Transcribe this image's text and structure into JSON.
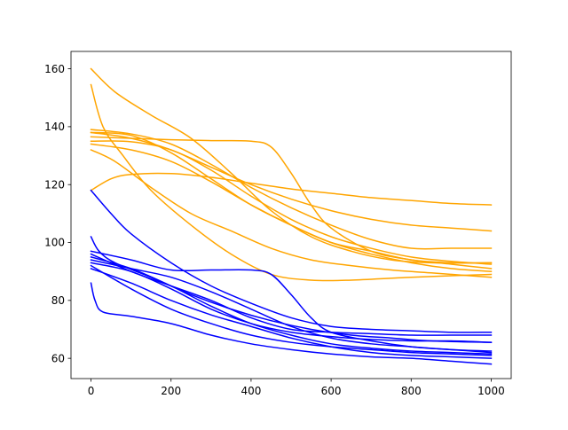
{
  "chart_data": {
    "type": "line",
    "title": "",
    "xlabel": "",
    "ylabel": "",
    "xlim": [
      -50,
      1050
    ],
    "ylim": [
      53,
      166
    ],
    "xticks": [
      0,
      200,
      400,
      600,
      800,
      1000
    ],
    "yticks": [
      60,
      80,
      100,
      120,
      140,
      160
    ],
    "xtick_labels": [
      "0",
      "200",
      "400",
      "600",
      "800",
      "1000"
    ],
    "ytick_labels": [
      "60",
      "80",
      "100",
      "120",
      "140",
      "160"
    ],
    "grid": false,
    "legend": false,
    "colors": {
      "group_orange": "#ffa500",
      "group_blue": "#0000ff"
    },
    "series": [
      {
        "color": "group_orange",
        "points": [
          [
            0,
            160
          ],
          [
            60,
            152
          ],
          [
            150,
            144
          ],
          [
            250,
            136
          ],
          [
            350,
            124
          ],
          [
            450,
            111
          ],
          [
            550,
            102
          ],
          [
            650,
            97
          ],
          [
            750,
            94
          ],
          [
            850,
            93
          ],
          [
            1000,
            93
          ]
        ]
      },
      {
        "color": "group_orange",
        "points": [
          [
            0,
            154.5
          ],
          [
            30,
            140
          ],
          [
            80,
            130
          ],
          [
            150,
            118
          ],
          [
            250,
            106
          ],
          [
            350,
            96
          ],
          [
            450,
            89
          ],
          [
            550,
            87
          ],
          [
            650,
            87
          ],
          [
            800,
            88
          ],
          [
            1000,
            89
          ]
        ]
      },
      {
        "color": "group_orange",
        "points": [
          [
            0,
            139
          ],
          [
            100,
            137.5
          ],
          [
            200,
            134
          ],
          [
            300,
            127
          ],
          [
            400,
            119
          ],
          [
            500,
            112
          ],
          [
            600,
            106
          ],
          [
            700,
            101
          ],
          [
            800,
            98
          ],
          [
            900,
            98
          ],
          [
            1000,
            98
          ]
        ]
      },
      {
        "color": "group_orange",
        "points": [
          [
            0,
            138
          ],
          [
            100,
            137
          ],
          [
            200,
            131
          ],
          [
            300,
            122
          ],
          [
            400,
            113
          ],
          [
            500,
            106
          ],
          [
            600,
            100
          ],
          [
            700,
            96
          ],
          [
            800,
            93
          ],
          [
            900,
            91
          ],
          [
            1000,
            90
          ]
        ]
      },
      {
        "color": "group_orange",
        "points": [
          [
            0,
            136.5
          ],
          [
            100,
            136
          ],
          [
            200,
            135.5
          ],
          [
            300,
            135.2
          ],
          [
            400,
            135
          ],
          [
            450,
            133
          ],
          [
            500,
            124
          ],
          [
            550,
            113
          ],
          [
            600,
            105
          ],
          [
            700,
            97
          ],
          [
            800,
            94
          ],
          [
            900,
            92.5
          ],
          [
            1000,
            91
          ]
        ]
      },
      {
        "color": "group_orange",
        "points": [
          [
            0,
            135
          ],
          [
            100,
            134.8
          ],
          [
            200,
            132
          ],
          [
            300,
            125
          ],
          [
            400,
            116
          ],
          [
            500,
            108
          ],
          [
            600,
            102
          ],
          [
            700,
            98
          ],
          [
            800,
            95
          ],
          [
            900,
            93.5
          ],
          [
            1000,
            92.5
          ]
        ]
      },
      {
        "color": "group_orange",
        "points": [
          [
            0,
            134
          ],
          [
            100,
            132
          ],
          [
            200,
            128
          ],
          [
            300,
            121
          ],
          [
            400,
            113
          ],
          [
            500,
            106
          ],
          [
            600,
            100
          ],
          [
            700,
            97
          ],
          [
            800,
            94
          ],
          [
            900,
            93
          ],
          [
            1000,
            93
          ]
        ]
      },
      {
        "color": "group_orange",
        "points": [
          [
            0,
            132
          ],
          [
            60,
            128
          ],
          [
            150,
            119
          ],
          [
            250,
            110
          ],
          [
            350,
            104
          ],
          [
            450,
            98
          ],
          [
            550,
            94
          ],
          [
            650,
            92
          ],
          [
            750,
            90.5
          ],
          [
            850,
            89.5
          ],
          [
            1000,
            88
          ]
        ]
      },
      {
        "color": "group_orange",
        "points": [
          [
            0,
            118
          ],
          [
            50,
            122
          ],
          [
            100,
            123.5
          ],
          [
            200,
            123.8
          ],
          [
            300,
            122.5
          ],
          [
            400,
            120.5
          ],
          [
            500,
            118.5
          ],
          [
            600,
            117
          ],
          [
            700,
            115.5
          ],
          [
            800,
            114.5
          ],
          [
            900,
            113.5
          ],
          [
            1000,
            113
          ]
        ]
      },
      {
        "color": "group_orange",
        "points": [
          [
            0,
            138
          ],
          [
            100,
            136
          ],
          [
            200,
            132
          ],
          [
            300,
            126
          ],
          [
            400,
            120
          ],
          [
            500,
            115
          ],
          [
            600,
            111
          ],
          [
            700,
            108
          ],
          [
            800,
            106
          ],
          [
            900,
            105
          ],
          [
            1000,
            104
          ]
        ]
      },
      {
        "color": "group_blue",
        "points": [
          [
            0,
            118
          ],
          [
            50,
            110
          ],
          [
            100,
            103
          ],
          [
            200,
            93
          ],
          [
            300,
            85
          ],
          [
            400,
            79
          ],
          [
            500,
            74
          ],
          [
            600,
            71
          ],
          [
            700,
            70
          ],
          [
            800,
            69.5
          ],
          [
            900,
            69
          ],
          [
            1000,
            69
          ]
        ]
      },
      {
        "color": "group_blue",
        "points": [
          [
            0,
            102
          ],
          [
            20,
            97
          ],
          [
            60,
            93
          ],
          [
            150,
            88
          ],
          [
            250,
            82
          ],
          [
            350,
            77
          ],
          [
            450,
            73
          ],
          [
            550,
            70
          ],
          [
            650,
            68
          ],
          [
            750,
            67
          ],
          [
            850,
            66
          ],
          [
            1000,
            65.5
          ]
        ]
      },
      {
        "color": "group_blue",
        "points": [
          [
            0,
            86
          ],
          [
            10,
            80
          ],
          [
            30,
            76
          ],
          [
            100,
            74.5
          ],
          [
            200,
            72
          ],
          [
            300,
            68
          ],
          [
            400,
            65
          ],
          [
            500,
            63
          ],
          [
            600,
            61.5
          ],
          [
            700,
            60.5
          ],
          [
            800,
            60
          ],
          [
            900,
            59
          ],
          [
            1000,
            58
          ]
        ]
      },
      {
        "color": "group_blue",
        "points": [
          [
            0,
            97
          ],
          [
            100,
            94
          ],
          [
            200,
            90.5
          ],
          [
            300,
            90.5
          ],
          [
            400,
            90.5
          ],
          [
            450,
            89
          ],
          [
            500,
            82
          ],
          [
            550,
            74
          ],
          [
            600,
            69
          ],
          [
            700,
            66
          ],
          [
            800,
            64
          ],
          [
            900,
            63
          ],
          [
            1000,
            62
          ]
        ]
      },
      {
        "color": "group_blue",
        "points": [
          [
            0,
            95
          ],
          [
            100,
            91
          ],
          [
            200,
            85
          ],
          [
            300,
            78
          ],
          [
            400,
            72
          ],
          [
            500,
            68
          ],
          [
            600,
            65
          ],
          [
            700,
            63.5
          ],
          [
            800,
            62.5
          ],
          [
            900,
            62
          ],
          [
            1000,
            61.5
          ]
        ]
      },
      {
        "color": "group_blue",
        "points": [
          [
            0,
            94
          ],
          [
            100,
            91
          ],
          [
            200,
            88
          ],
          [
            300,
            83
          ],
          [
            400,
            77
          ],
          [
            500,
            71
          ],
          [
            600,
            67
          ],
          [
            700,
            65
          ],
          [
            800,
            64
          ],
          [
            900,
            63
          ],
          [
            1000,
            62.5
          ]
        ]
      },
      {
        "color": "group_blue",
        "points": [
          [
            0,
            93
          ],
          [
            100,
            90
          ],
          [
            200,
            84
          ],
          [
            300,
            77
          ],
          [
            400,
            72
          ],
          [
            500,
            69
          ],
          [
            600,
            67.5
          ],
          [
            700,
            66.5
          ],
          [
            800,
            66
          ],
          [
            900,
            66
          ],
          [
            1000,
            65.5
          ]
        ]
      },
      {
        "color": "group_blue",
        "points": [
          [
            0,
            92
          ],
          [
            100,
            84
          ],
          [
            200,
            77
          ],
          [
            300,
            72
          ],
          [
            400,
            68
          ],
          [
            500,
            65.5
          ],
          [
            600,
            64
          ],
          [
            700,
            63
          ],
          [
            800,
            62
          ],
          [
            900,
            61.5
          ],
          [
            1000,
            61
          ]
        ]
      },
      {
        "color": "group_blue",
        "points": [
          [
            0,
            91
          ],
          [
            100,
            86
          ],
          [
            200,
            80
          ],
          [
            300,
            75
          ],
          [
            400,
            71
          ],
          [
            500,
            67
          ],
          [
            600,
            64
          ],
          [
            700,
            62
          ],
          [
            800,
            61
          ],
          [
            900,
            60.5
          ],
          [
            1000,
            60
          ]
        ]
      },
      {
        "color": "group_blue",
        "points": [
          [
            0,
            96
          ],
          [
            100,
            90
          ],
          [
            200,
            85
          ],
          [
            300,
            80
          ],
          [
            400,
            74
          ],
          [
            500,
            70
          ],
          [
            600,
            69
          ],
          [
            700,
            68.5
          ],
          [
            800,
            68
          ],
          [
            900,
            68
          ],
          [
            1000,
            68
          ]
        ]
      }
    ]
  }
}
